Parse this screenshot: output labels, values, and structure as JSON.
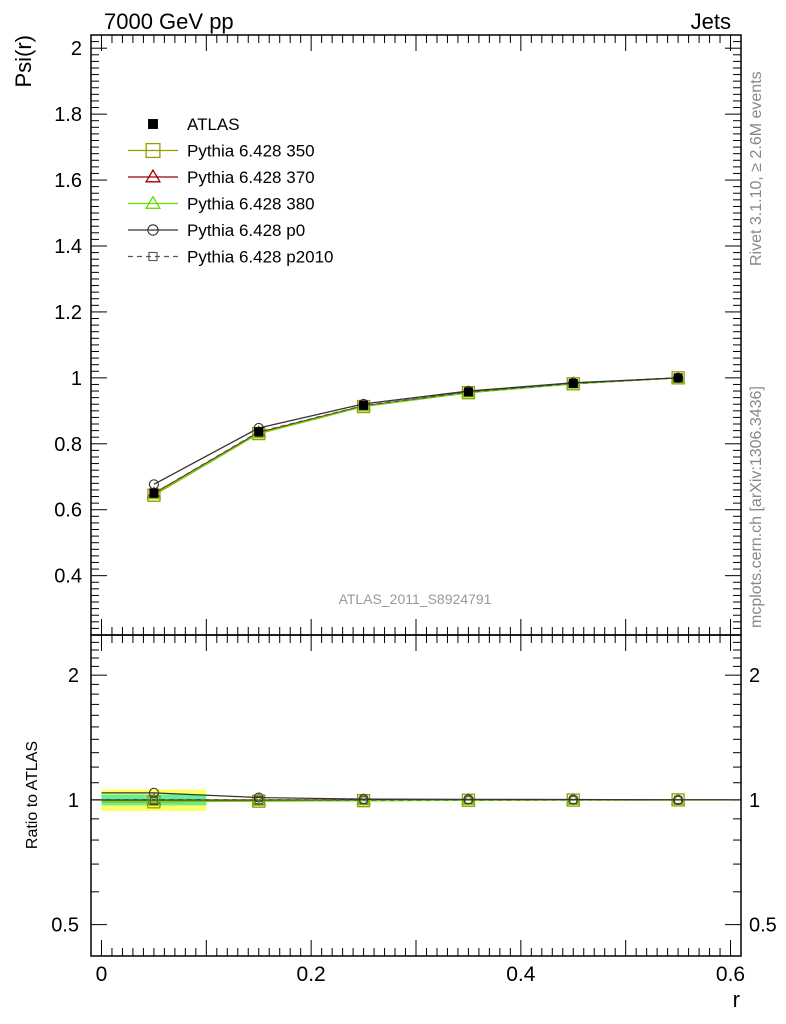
{
  "header": {
    "left": "7000 GeV pp",
    "right": "Jets"
  },
  "side_labels": {
    "rivet": "Rivet 3.1.10, ≥ 2.6M events",
    "mcplots": "mcplots.cern.ch [arXiv:1306.3436]"
  },
  "analysis_id": "ATLAS_2011_S8924791",
  "chart_data": {
    "type": "line",
    "xlabel": "r",
    "ylabel": "Psi(r)",
    "ratio_ylabel": "Ratio to ATLAS",
    "xlim": [
      -0.01,
      0.61
    ],
    "ylim": [
      0.22,
      2.04
    ],
    "ratio_ylim": [
      0.42,
      2.5
    ],
    "x_ticks": [
      0,
      0.2,
      0.4,
      0.6
    ],
    "x_tick_labels": [
      "0",
      "0.2",
      "0.4",
      "0.6"
    ],
    "y_ticks": [
      0.4,
      0.6,
      0.8,
      1,
      1.2,
      1.4,
      1.6,
      1.8,
      2
    ],
    "y_tick_labels": [
      "0.4",
      "0.6",
      "0.8",
      "1",
      "1.2",
      "1.4",
      "1.6",
      "1.8",
      "2"
    ],
    "ratio_ticks": [
      0.5,
      1,
      2
    ],
    "ratio_tick_labels": [
      "0.5",
      "1",
      "2"
    ],
    "legend_position": "top-left",
    "x": [
      0.05,
      0.15,
      0.25,
      0.35,
      0.45,
      0.55
    ],
    "x_edges": [
      0,
      0.1,
      0.2,
      0.3,
      0.4,
      0.5,
      0.6
    ],
    "series": [
      {
        "name": "ATLAS",
        "color": "#000000",
        "marker": "filled-square",
        "line": "none",
        "values": [
          0.651,
          0.837,
          0.917,
          0.957,
          0.983,
          1.0
        ]
      },
      {
        "name": "Pythia 6.428 350",
        "color": "#999900",
        "marker": "open-square",
        "line": "solid",
        "values": [
          0.644,
          0.831,
          0.913,
          0.955,
          0.982,
          1.0
        ]
      },
      {
        "name": "Pythia 6.428 370",
        "color": "#990000",
        "marker": "open-triangle",
        "line": "solid",
        "values": [
          0.649,
          0.834,
          0.915,
          0.956,
          0.983,
          1.0
        ]
      },
      {
        "name": "Pythia 6.428 380",
        "color": "#66dd00",
        "marker": "open-triangle",
        "line": "solid",
        "values": [
          0.646,
          0.831,
          0.913,
          0.955,
          0.982,
          1.0
        ]
      },
      {
        "name": "Pythia 6.428 p0",
        "color": "#333333",
        "marker": "open-circle",
        "line": "solid",
        "values": [
          0.677,
          0.848,
          0.921,
          0.96,
          0.985,
          1.0
        ]
      },
      {
        "name": "Pythia 6.428 p2010",
        "color": "#555555",
        "marker": "open-square-small",
        "line": "dashed",
        "values": [
          0.65,
          0.836,
          0.916,
          0.957,
          0.983,
          1.0
        ]
      }
    ],
    "ratio_band": {
      "color_outer": "#ffff66",
      "color_inner": "#66ee99",
      "bins": [
        {
          "x0": 0.0,
          "x1": 0.1,
          "outer": [
            0.94,
            1.06
          ],
          "inner": [
            0.97,
            1.03
          ]
        },
        {
          "x0": 0.1,
          "x1": 0.6,
          "outer": [
            0.995,
            1.005
          ],
          "inner": [
            0.998,
            1.002
          ]
        }
      ]
    }
  }
}
